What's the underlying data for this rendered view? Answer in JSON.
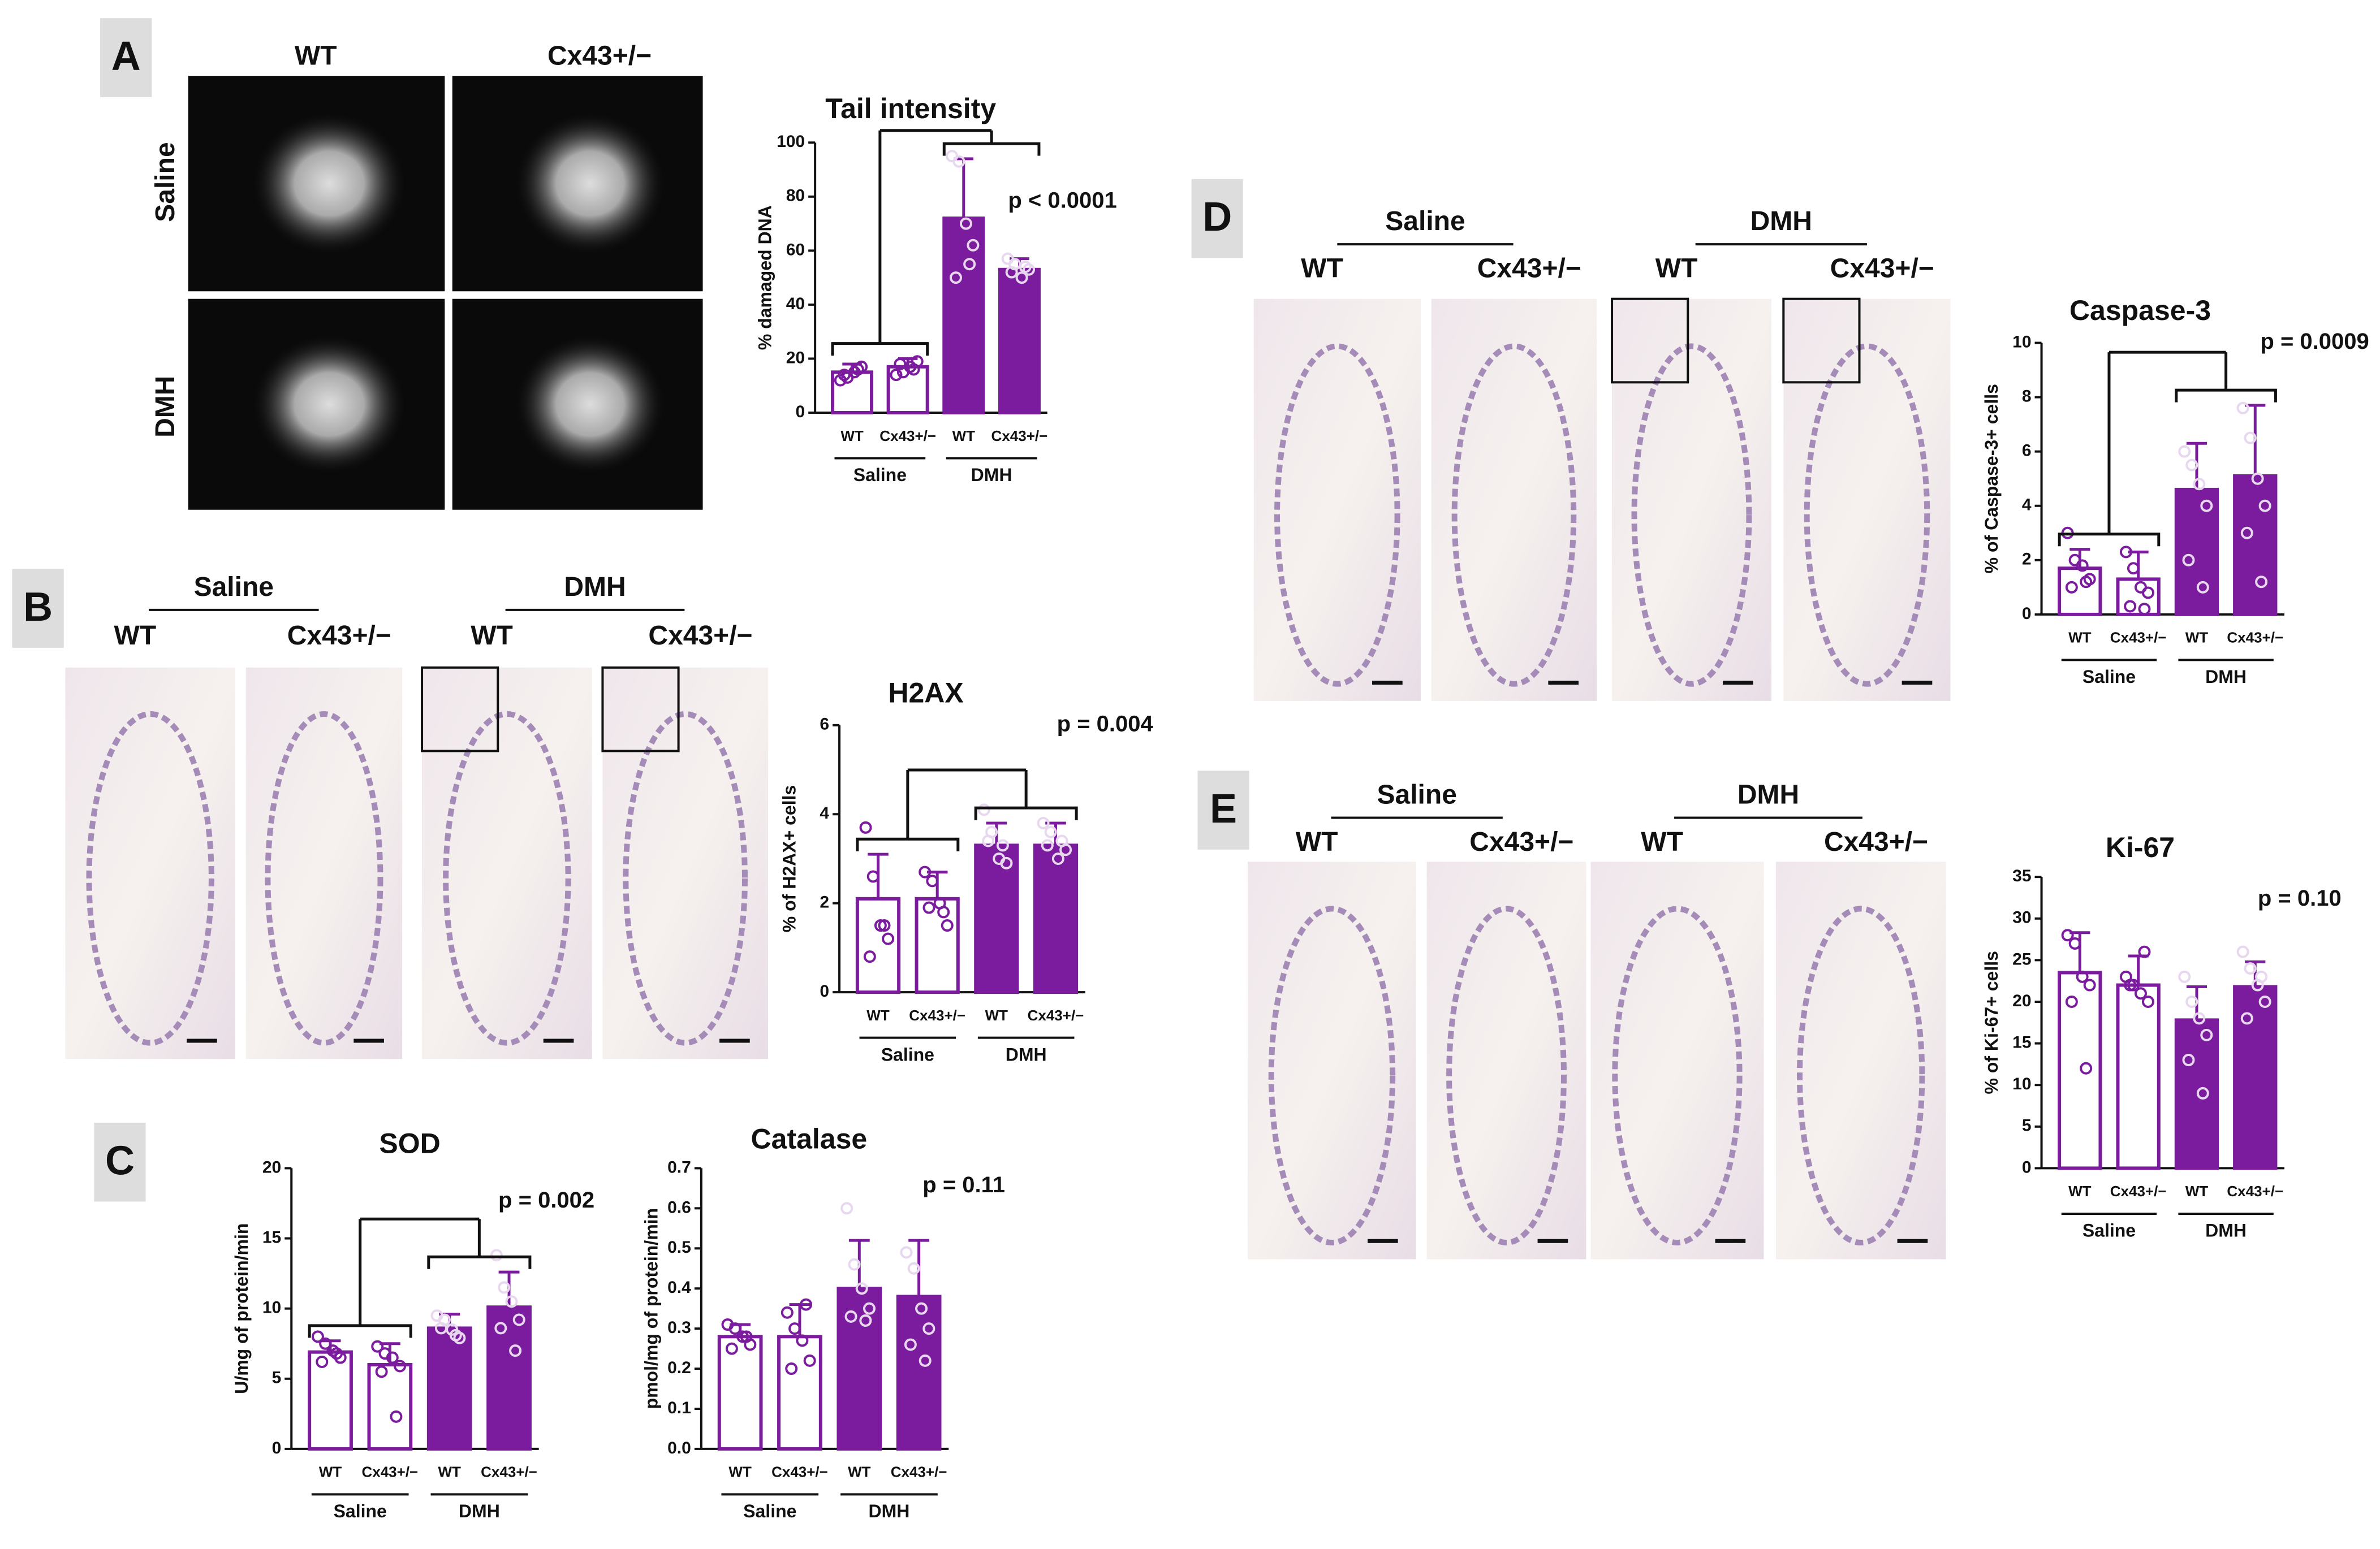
{
  "figure": {
    "panels": [
      {
        "letter": "A",
        "columns": [
          "WT",
          "Cx43+/−"
        ],
        "rows": [
          "Saline",
          "DMH"
        ]
      },
      {
        "letter": "B",
        "groups": [
          "Saline",
          "DMH"
        ],
        "columns": [
          "WT",
          "Cx43+/−",
          "WT",
          "Cx43+/−"
        ]
      },
      {
        "letter": "C"
      },
      {
        "letter": "D",
        "groups": [
          "Saline",
          "DMH"
        ],
        "columns": [
          "WT",
          "Cx43+/−",
          "WT",
          "Cx43+/−"
        ]
      },
      {
        "letter": "E",
        "groups": [
          "Saline",
          "DMH"
        ],
        "columns": [
          "WT",
          "Cx43+/−",
          "WT",
          "Cx43+/−"
        ]
      }
    ]
  },
  "chart_data": [
    {
      "type": "bar",
      "title": "Tail intensity",
      "ylabel": "% damaged DNA",
      "annotation": "p < 0.0001",
      "categories": [
        "WT",
        "Cx43+/−",
        "WT",
        "Cx43+/−"
      ],
      "groups": [
        "Saline",
        "DMH"
      ],
      "values": [
        15,
        17,
        72,
        53
      ],
      "errors": [
        3,
        3,
        22,
        4
      ],
      "points": [
        [
          12,
          13,
          15,
          17,
          14,
          16
        ],
        [
          14,
          15,
          17,
          19,
          18,
          16
        ],
        [
          95,
          93,
          70,
          62,
          50,
          55
        ],
        [
          57,
          55,
          50,
          53,
          52,
          54
        ]
      ],
      "filled": [
        false,
        false,
        true,
        true
      ],
      "color": "#7b1b9d",
      "bracket": true,
      "ylim": [
        0,
        100
      ],
      "yticks": [
        0,
        20,
        40,
        60,
        80,
        100
      ]
    },
    {
      "type": "bar",
      "title": "H2AX",
      "ylabel": "% of H2AX+ cells",
      "annotation": "p = 0.004",
      "categories": [
        "WT",
        "Cx43+/−",
        "WT",
        "Cx43+/−"
      ],
      "groups": [
        "Saline",
        "DMH"
      ],
      "values": [
        2.1,
        2.1,
        3.3,
        3.3
      ],
      "errors": [
        1.0,
        0.6,
        0.5,
        0.5
      ],
      "points": [
        [
          3.7,
          2.6,
          1.5,
          1.2,
          0.8,
          1.5
        ],
        [
          2.7,
          2.5,
          2.0,
          1.5,
          1.9,
          1.8
        ],
        [
          4.1,
          3.6,
          3.0,
          2.9,
          3.4,
          3.3
        ],
        [
          3.8,
          3.6,
          3.0,
          3.2,
          3.3,
          3.4
        ]
      ],
      "filled": [
        false,
        false,
        true,
        true
      ],
      "color": "#7b1b9d",
      "bracket": true,
      "ylim": [
        0,
        6
      ],
      "yticks": [
        0,
        2,
        4,
        6
      ]
    },
    {
      "type": "bar",
      "title": "SOD",
      "ylabel": "U/mg of protein/min",
      "annotation": "p = 0.002",
      "categories": [
        "WT",
        "Cx43+/−",
        "WT",
        "Cx43+/−"
      ],
      "groups": [
        "Saline",
        "DMH"
      ],
      "values": [
        6.9,
        6.0,
        8.6,
        10.1
      ],
      "errors": [
        0.8,
        1.5,
        1.0,
        2.5
      ],
      "points": [
        [
          8,
          7.5,
          7,
          6.5,
          6.2,
          6.8
        ],
        [
          7.3,
          6.8,
          6.5,
          5.9,
          5.5,
          2.3
        ],
        [
          9.5,
          9.2,
          8.5,
          7.9,
          8.6,
          8.1
        ],
        [
          13.8,
          11.5,
          10.5,
          9.2,
          8.6,
          7
        ]
      ],
      "filled": [
        false,
        false,
        true,
        true
      ],
      "color": "#7b1b9d",
      "bracket": true,
      "ylim": [
        0,
        20
      ],
      "yticks": [
        0,
        5,
        10,
        15,
        20
      ]
    },
    {
      "type": "bar",
      "title": "Catalase",
      "ylabel": "pmol/mg of protein/min",
      "annotation": "p = 0.11",
      "categories": [
        "WT",
        "Cx43+/−",
        "WT",
        "Cx43+/−"
      ],
      "groups": [
        "Saline",
        "DMH"
      ],
      "values": [
        0.28,
        0.28,
        0.4,
        0.38
      ],
      "errors": [
        0.03,
        0.08,
        0.12,
        0.14
      ],
      "points": [
        [
          0.31,
          0.3,
          0.28,
          0.26,
          0.25,
          0.28
        ],
        [
          0.34,
          0.3,
          0.27,
          0.22,
          0.2,
          0.36
        ],
        [
          0.6,
          0.46,
          0.4,
          0.35,
          0.33,
          0.32
        ],
        [
          0.49,
          0.45,
          0.35,
          0.3,
          0.26,
          0.22
        ]
      ],
      "filled": [
        false,
        false,
        true,
        true
      ],
      "color": "#7b1b9d",
      "bracket": false,
      "ylim": [
        0,
        0.7
      ],
      "yticks": [
        {
          "value": 0,
          "label": "0.0"
        },
        0.1,
        0.2,
        0.3,
        0.4,
        0.5,
        0.6,
        0.7
      ]
    },
    {
      "type": "bar",
      "title": "Caspase-3",
      "ylabel": "% of Caspase-3+ cells",
      "annotation": "p = 0.0009",
      "categories": [
        "WT",
        "Cx43+/−",
        "WT",
        "Cx43+/−"
      ],
      "groups": [
        "Saline",
        "DMH"
      ],
      "values": [
        1.7,
        1.3,
        4.6,
        5.1
      ],
      "errors": [
        0.7,
        1.0,
        1.7,
        2.6
      ],
      "points": [
        [
          3,
          2,
          1.8,
          1.3,
          1,
          1.2
        ],
        [
          2.3,
          1.7,
          1,
          0.8,
          0.3,
          0.2
        ],
        [
          6,
          5.5,
          4.8,
          4,
          2,
          1
        ],
        [
          7.6,
          6.5,
          5,
          4,
          3,
          1.2
        ]
      ],
      "filled": [
        false,
        false,
        true,
        true
      ],
      "color": "#7b1b9d",
      "bracket": true,
      "ylim": [
        0,
        10
      ],
      "yticks": [
        0,
        2,
        4,
        6,
        8,
        10
      ]
    },
    {
      "type": "bar",
      "title": "Ki-67",
      "ylabel": "% of Ki-67+ cells",
      "annotation": "p = 0.10",
      "categories": [
        "WT",
        "Cx43+/−",
        "WT",
        "Cx43+/−"
      ],
      "groups": [
        "Saline",
        "DMH"
      ],
      "values": [
        23.5,
        22,
        17.8,
        21.8
      ],
      "errors": [
        4.8,
        3.5,
        4,
        3
      ],
      "points": [
        [
          28,
          27,
          23,
          22,
          20,
          12
        ],
        [
          23,
          22,
          21,
          20,
          22,
          26
        ],
        [
          23,
          20,
          18,
          16,
          13,
          9
        ],
        [
          26,
          24,
          22,
          20,
          18,
          23
        ]
      ],
      "filled": [
        false,
        false,
        true,
        true
      ],
      "color": "#7b1b9d",
      "bracket": false,
      "ylim": [
        0,
        35
      ],
      "yticks": [
        0,
        5,
        10,
        15,
        20,
        25,
        30,
        35
      ]
    }
  ]
}
